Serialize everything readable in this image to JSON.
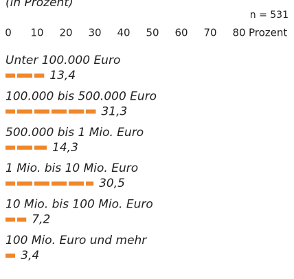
{
  "chart_data": {
    "type": "bar",
    "orientation": "horizontal",
    "subtitle": "(in Prozent)",
    "note": "n = 531",
    "x_label": "Prozent",
    "categories": [
      "Unter 100.000 Euro",
      "100.000 bis 500.000 Euro",
      "500.000 bis 1 Mio. Euro",
      "1 Mio. bis 10 Mio. Euro",
      "10 Mio. bis 100 Mio. Euro",
      "100 Mio. Euro und mehr"
    ],
    "values": [
      13.4,
      31.3,
      14.3,
      30.5,
      7.2,
      3.4
    ],
    "value_labels": [
      "13,4",
      "31,3",
      "14,3",
      "30,5",
      "7,2",
      "3,4"
    ],
    "color": "#f0872a",
    "xlim": [
      0,
      80
    ],
    "xticks": [
      0,
      10,
      20,
      30,
      40,
      50,
      60,
      70,
      80
    ]
  }
}
